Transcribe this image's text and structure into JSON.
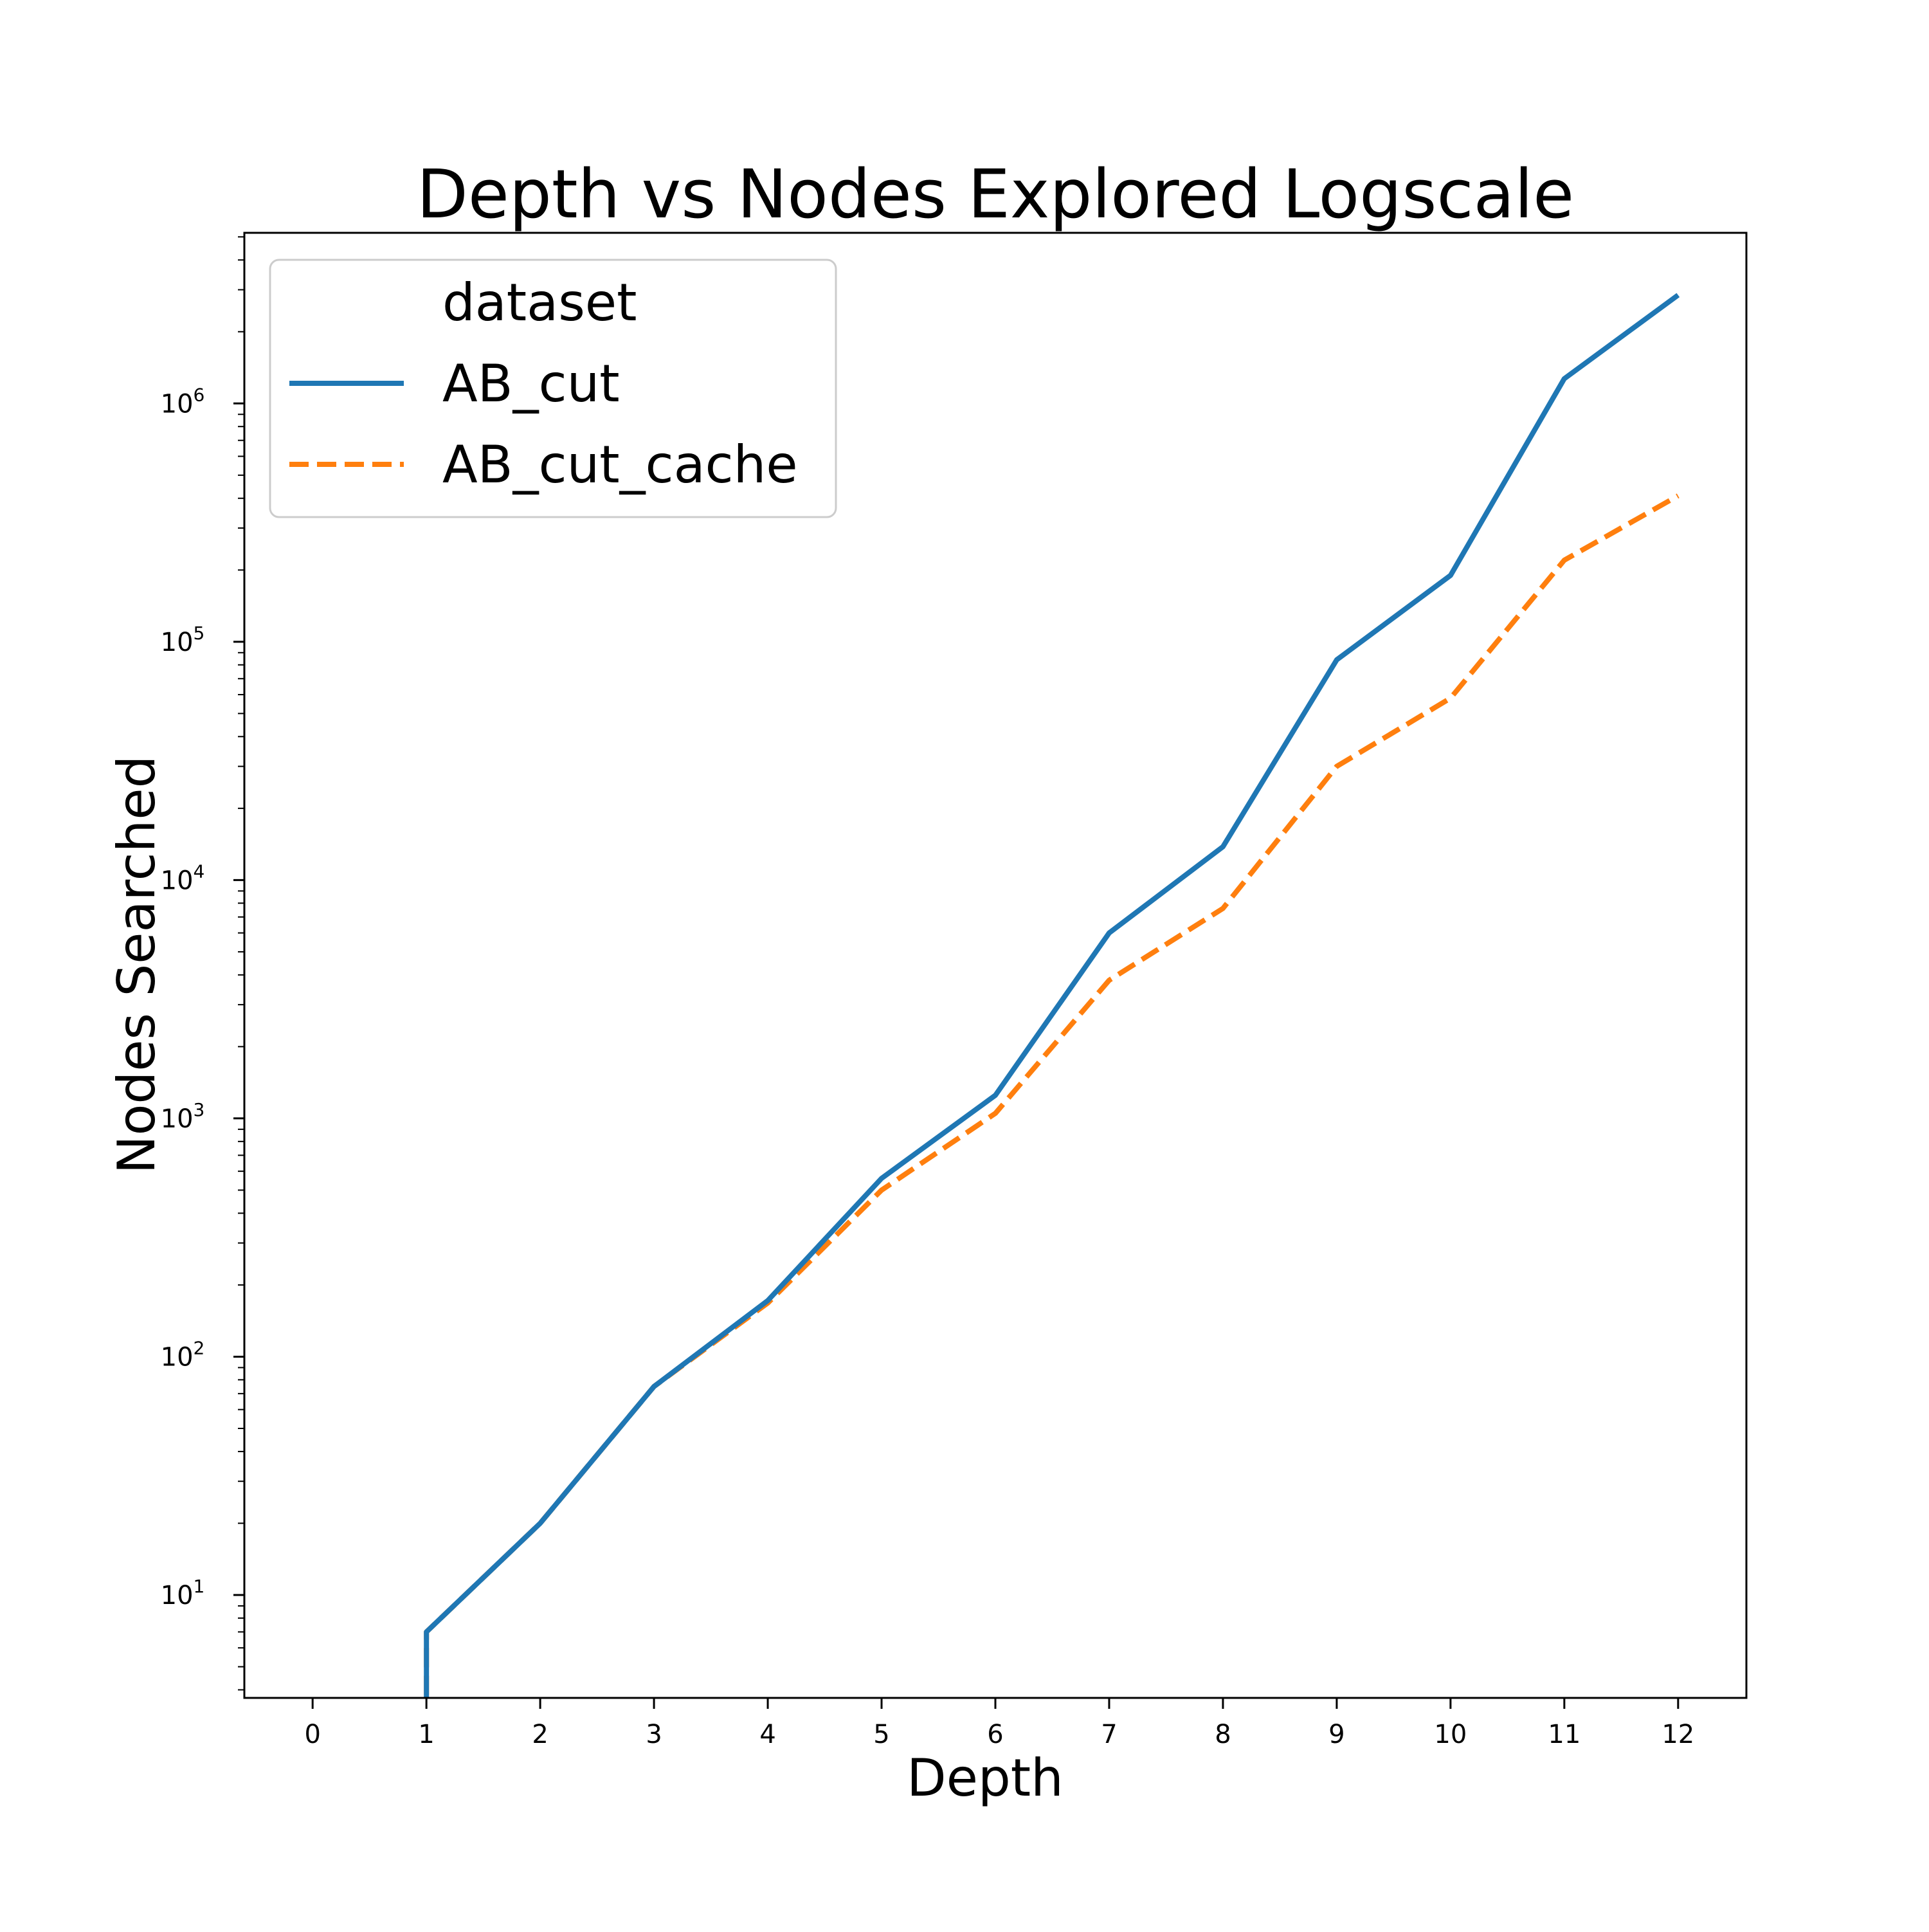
{
  "chart_data": {
    "type": "line",
    "title": "Depth vs Nodes Explored Logscale",
    "xlabel": "Depth",
    "ylabel": "Nodes Searched",
    "xlim": [
      -0.6,
      12.6
    ],
    "ylim": [
      3.7,
      5200000
    ],
    "yscale": "log",
    "grid": false,
    "legend_placement": "top-left",
    "x_ticks": [
      "0",
      "1",
      "2",
      "3",
      "4",
      "5",
      "6",
      "7",
      "8",
      "9",
      "10",
      "11",
      "12"
    ],
    "y_ticks": [
      {
        "base": "10",
        "exp": "1"
      },
      {
        "base": "10",
        "exp": "2"
      },
      {
        "base": "10",
        "exp": "3"
      },
      {
        "base": "10",
        "exp": "4"
      },
      {
        "base": "10",
        "exp": "5"
      },
      {
        "base": "10",
        "exp": "6"
      }
    ],
    "legend_title": "dataset",
    "series": [
      {
        "name": "AB_cut",
        "color": "#1f77b4",
        "style": "solid",
        "x": [
          1,
          1,
          2,
          3,
          4,
          5,
          6,
          7,
          8,
          9,
          10,
          11,
          12
        ],
        "y": [
          1,
          7,
          20,
          75,
          172,
          560,
          1250,
          6000,
          13800,
          84000,
          190000,
          1270000,
          2850000
        ]
      },
      {
        "name": "AB_cut_cache",
        "color": "#ff7f0e",
        "style": "dashed",
        "x": [
          1,
          1,
          2,
          3,
          4,
          5,
          6,
          7,
          8,
          9,
          10,
          11,
          12
        ],
        "y": [
          1,
          7,
          20,
          75,
          168,
          500,
          1050,
          3800,
          7600,
          30000,
          58000,
          220000,
          410000
        ]
      }
    ]
  }
}
